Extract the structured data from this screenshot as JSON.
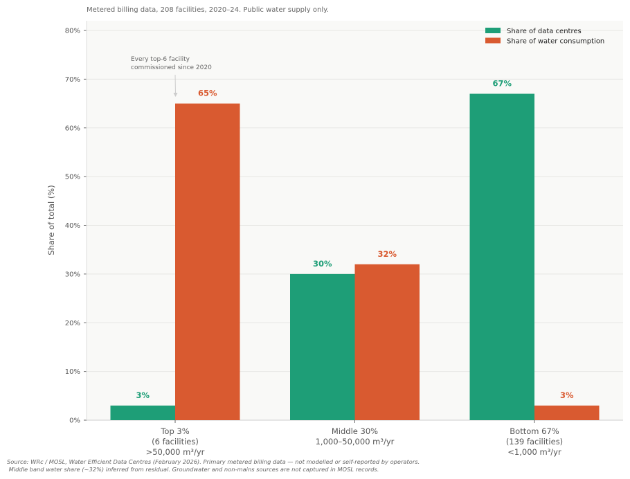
{
  "subtitle": "Metered billing data, 208 facilities, 2020–24. Public water supply only.",
  "source_lines": [
    "Source: WRc / MOSL, Water Efficient Data Centres (February 2026). Primary metered billing data — not modelled or self-reported by operators.",
    " Middle band water share (~32%) inferred from residual. Groundwater and non-mains sources are not captured in MOSL records."
  ],
  "colors": {
    "data_centres": "#1e9e77",
    "water": "#d95a30",
    "grid": "#e6e6e3",
    "background": "#f9f9f7"
  },
  "chart_data": {
    "type": "bar",
    "categories": [
      [
        "Top 3%",
        "(6 facilities)",
        ">50,000 m³/yr"
      ],
      [
        "Middle 30%",
        "1,000–50,000 m³/yr"
      ],
      [
        "Bottom 67%",
        "(139 facilities)",
        "<1,000 m³/yr"
      ]
    ],
    "series": [
      {
        "name": "Share of data centres",
        "values": [
          3,
          30,
          67
        ],
        "labels": [
          "3%",
          "30%",
          "67%"
        ],
        "color": "#1e9e77"
      },
      {
        "name": "Share of water consumption",
        "values": [
          65,
          32,
          3
        ],
        "labels": [
          "65%",
          "32%",
          "3%"
        ],
        "color": "#d95a30"
      }
    ],
    "xlabel": "",
    "ylabel": "Share of total (%)",
    "ylim": [
      0,
      82
    ],
    "yticks": [
      0,
      10,
      20,
      30,
      40,
      50,
      60,
      70,
      80
    ],
    "ytick_labels": [
      "0%",
      "10%",
      "20%",
      "30%",
      "40%",
      "50%",
      "60%",
      "70%",
      "80%"
    ],
    "grid": true,
    "legend_position": "top-right",
    "annotation": {
      "text": [
        "Every top-6 facility",
        "commissioned since 2020"
      ],
      "points_to": "Top 3% / Share of water consumption"
    }
  }
}
